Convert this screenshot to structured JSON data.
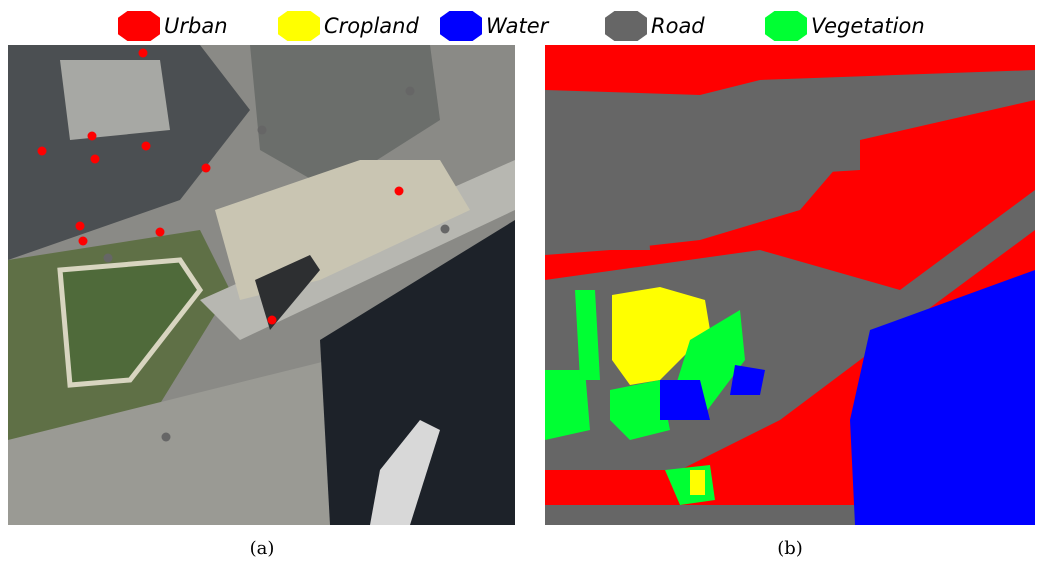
{
  "legend": [
    {
      "label": "Urban",
      "color": "#ff0000"
    },
    {
      "label": "Cropland",
      "color": "#ffff00"
    },
    {
      "label": "Water",
      "color": "#0000ff"
    },
    {
      "label": "Road",
      "color": "#666666"
    },
    {
      "label": "Vegetation",
      "color": "#00ff33"
    }
  ],
  "captions": [
    "(a)",
    "(b)"
  ]
}
